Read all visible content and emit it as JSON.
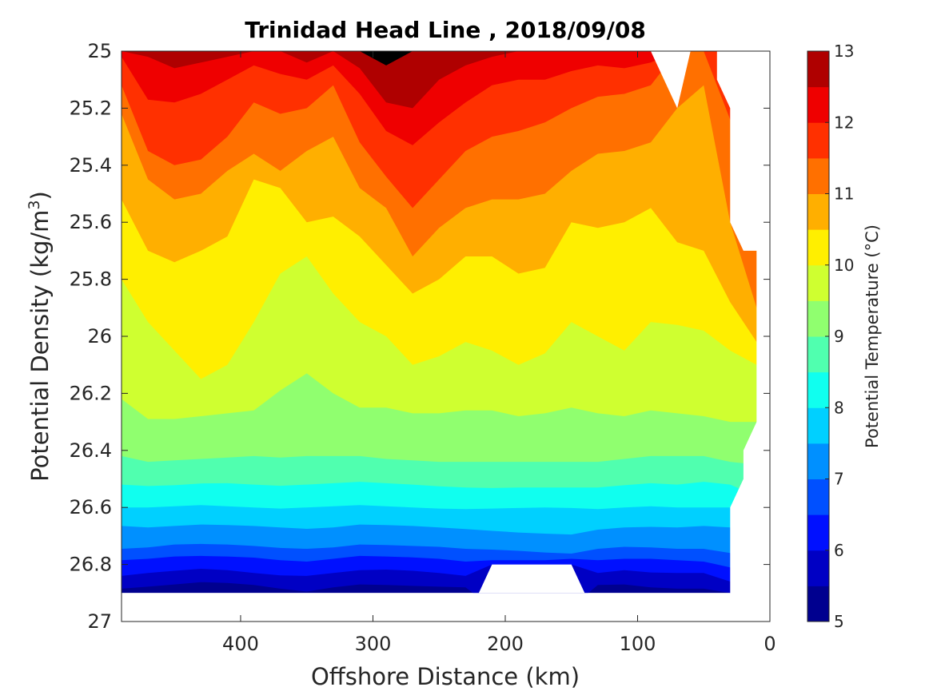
{
  "chart_data": {
    "type": "contour",
    "title": "Trinidad Head Line , 2018/09/08",
    "xlabel": "Offshore Distance (km)",
    "ylabel_main": "Potential Density (kg/m",
    "ylabel_sup": "3",
    "ylabel_close": ")",
    "colorbar_label": "Potential Temperature (°C)",
    "x_reversed": true,
    "xlim": [
      0,
      490
    ],
    "ylim": [
      25,
      27
    ],
    "y_reversed": true,
    "x_ticks": [
      400,
      300,
      200,
      100,
      0
    ],
    "x_tick_labels": [
      "400",
      "300",
      "200",
      "100",
      "0"
    ],
    "y_ticks": [
      25,
      25.2,
      25.4,
      25.6,
      25.8,
      26,
      26.2,
      26.4,
      26.6,
      26.8,
      27
    ],
    "y_tick_labels": [
      "25",
      "25.2",
      "25.4",
      "25.6",
      "25.8",
      "26",
      "26.2",
      "26.4",
      "26.6",
      "26.8",
      "27"
    ],
    "colorbar_ticks": [
      5,
      6,
      7,
      8,
      9,
      10,
      11,
      12,
      13
    ],
    "colorbar_tick_labels": [
      "5",
      "6",
      "7",
      "8",
      "9",
      "10",
      "11",
      "12",
      "13"
    ],
    "level_step": 0.5,
    "level_colors": [
      "#00008f",
      "#0000c4",
      "#0010ff",
      "#0050ff",
      "#0090ff",
      "#00d0ff",
      "#10ffef",
      "#50ffaf",
      "#90ff6f",
      "#cfff30",
      "#ffef00",
      "#ffaf00",
      "#ff7000",
      "#ff3000",
      "#ef0000",
      "#af0000"
    ],
    "section_x": [
      490,
      470,
      450,
      430,
      410,
      390,
      370,
      350,
      330,
      310,
      290,
      270,
      250,
      230,
      210,
      190,
      170,
      150,
      130,
      110,
      90,
      70,
      50,
      30,
      10
    ],
    "isopycnal_depth_of_level": {
      "5.5": [
        26.885,
        26.878,
        26.87,
        26.862,
        26.865,
        26.872,
        26.885,
        26.895,
        26.88,
        26.87,
        26.872,
        26.875,
        26.878,
        26.88,
        26.95,
        26.95,
        26.95,
        26.95,
        26.872,
        26.87,
        26.88,
        26.885,
        26.885,
        26.9,
        27
      ],
      "6": [
        26.84,
        26.83,
        26.822,
        26.815,
        26.82,
        26.83,
        26.838,
        26.84,
        26.83,
        26.82,
        26.818,
        26.822,
        26.83,
        26.84,
        26.8,
        26.8,
        26.8,
        26.8,
        26.83,
        26.82,
        26.828,
        26.83,
        26.83,
        26.86,
        27
      ],
      "6.5": [
        26.785,
        26.78,
        26.772,
        26.77,
        26.772,
        26.776,
        26.785,
        26.79,
        26.78,
        26.77,
        26.772,
        26.775,
        26.78,
        26.79,
        26.785,
        26.785,
        26.785,
        26.78,
        26.785,
        26.78,
        26.78,
        26.785,
        26.79,
        26.81,
        27
      ],
      "7": [
        26.745,
        26.74,
        26.73,
        26.728,
        26.73,
        26.735,
        26.742,
        26.745,
        26.74,
        26.73,
        26.732,
        26.735,
        26.738,
        26.745,
        26.748,
        26.752,
        26.758,
        26.762,
        26.745,
        26.738,
        26.74,
        26.745,
        26.745,
        26.76,
        27
      ],
      "7.5": [
        26.665,
        26.67,
        26.665,
        26.66,
        26.662,
        26.665,
        26.67,
        26.675,
        26.67,
        26.66,
        26.662,
        26.665,
        26.67,
        26.676,
        26.682,
        26.688,
        26.692,
        26.695,
        26.678,
        26.67,
        26.668,
        26.67,
        26.665,
        26.67,
        27
      ],
      "8": [
        26.6,
        26.6,
        26.596,
        26.592,
        26.596,
        26.6,
        26.604,
        26.6,
        26.596,
        26.592,
        26.596,
        26.6,
        26.604,
        26.606,
        26.604,
        26.602,
        26.6,
        26.602,
        26.606,
        26.6,
        26.596,
        26.6,
        26.6,
        26.6,
        26.62
      ],
      "8.5": [
        26.52,
        26.525,
        26.522,
        26.516,
        26.515,
        26.52,
        26.524,
        26.52,
        26.515,
        26.51,
        26.515,
        26.52,
        26.526,
        26.53,
        26.532,
        26.53,
        26.53,
        26.53,
        26.53,
        26.522,
        26.515,
        26.52,
        26.51,
        26.52,
        26.56
      ],
      "9": [
        26.42,
        26.44,
        26.435,
        26.43,
        26.425,
        26.42,
        26.425,
        26.42,
        26.42,
        26.42,
        26.43,
        26.435,
        26.44,
        26.44,
        26.44,
        26.44,
        26.44,
        26.44,
        26.44,
        26.43,
        26.42,
        26.42,
        26.42,
        26.44,
        26.45
      ],
      "9.5": [
        26.22,
        26.29,
        26.29,
        26.28,
        26.27,
        26.26,
        26.19,
        26.13,
        26.2,
        26.25,
        26.25,
        26.27,
        26.27,
        26.26,
        26.26,
        26.28,
        26.27,
        26.25,
        26.27,
        26.28,
        26.26,
        26.27,
        26.28,
        26.3,
        26.3
      ],
      "10": [
        25.8,
        25.95,
        26.05,
        26.15,
        26.1,
        25.95,
        25.78,
        25.72,
        25.85,
        25.95,
        26.0,
        26.1,
        26.07,
        26.02,
        26.05,
        26.1,
        26.06,
        25.95,
        26.0,
        26.05,
        25.95,
        25.96,
        25.98,
        26.05,
        26.1
      ],
      "10.5": [
        25.52,
        25.7,
        25.74,
        25.7,
        25.65,
        25.45,
        25.48,
        25.6,
        25.58,
        25.65,
        25.75,
        25.85,
        25.8,
        25.72,
        25.72,
        25.78,
        25.76,
        25.6,
        25.62,
        25.6,
        25.55,
        25.67,
        25.7,
        25.88,
        26.02
      ],
      "11": [
        25.22,
        25.45,
        25.52,
        25.5,
        25.42,
        25.36,
        25.42,
        25.35,
        25.3,
        25.48,
        25.55,
        25.72,
        25.62,
        25.55,
        25.52,
        25.52,
        25.5,
        25.42,
        25.36,
        25.35,
        25.32,
        25.2,
        25.12,
        25.6,
        25.9
      ],
      "11.5": [
        25.12,
        25.35,
        25.4,
        25.38,
        25.3,
        25.18,
        25.22,
        25.2,
        25.12,
        25.32,
        25.44,
        25.55,
        25.45,
        25.35,
        25.3,
        25.28,
        25.25,
        25.2,
        25.16,
        25.15,
        25.12,
        25.0,
        25.0,
        25.24,
        25.7
      ],
      "12": [
        25.02,
        25.17,
        25.18,
        25.15,
        25.1,
        25.05,
        25.08,
        25.1,
        25.05,
        25.15,
        25.28,
        25.33,
        25.25,
        25.18,
        25.12,
        25.1,
        25.1,
        25.07,
        25.05,
        25.06,
        25.04,
        25.0,
        25.0,
        25.0,
        25.0
      ],
      "12.5": [
        25.0,
        25.02,
        25.06,
        25.04,
        25.02,
        25.0,
        25.0,
        25.04,
        25.0,
        25.06,
        25.18,
        25.2,
        25.1,
        25.05,
        25.02,
        25.0,
        25.0,
        25.0,
        25.0,
        25.0,
        25.0,
        25.0,
        25.0,
        25.0,
        25.0
      ],
      "13": [
        25.0,
        25.0,
        25.0,
        25.0,
        25.0,
        25.0,
        25.0,
        25.0,
        25.0,
        25.0,
        25.05,
        25.0,
        25.0,
        25.0,
        25.0,
        25.0,
        25.0,
        25.0,
        25.0,
        25.0,
        25.0,
        25.0,
        25.0,
        25.0,
        25.0
      ]
    },
    "no_data_regions": [
      {
        "name": "seafloor gap",
        "points": [
          [
            220,
            26.9
          ],
          [
            210,
            26.8
          ],
          [
            150,
            26.8
          ],
          [
            140,
            26.9
          ]
        ]
      },
      {
        "name": "nearshore gap top",
        "points": [
          [
            90,
            25.0
          ],
          [
            70,
            25.2
          ],
          [
            60,
            25.0
          ]
        ]
      },
      {
        "name": "nearshore gap right",
        "points": [
          [
            40,
            25.0
          ],
          [
            40,
            25.1
          ],
          [
            30,
            25.2
          ],
          [
            30,
            25.6
          ],
          [
            20,
            25.7
          ],
          [
            10,
            25.7
          ],
          [
            10,
            26.3
          ],
          [
            20,
            26.4
          ],
          [
            20,
            26.5
          ],
          [
            30,
            26.6
          ],
          [
            30,
            26.9
          ],
          [
            0,
            27
          ],
          [
            0,
            25
          ]
        ]
      },
      {
        "name": "bottom strip",
        "points": [
          [
            490,
            26.9
          ],
          [
            0,
            26.9
          ],
          [
            0,
            27
          ],
          [
            490,
            27
          ]
        ]
      },
      {
        "name": "right strip",
        "points": [
          [
            10,
            25.0
          ],
          [
            0,
            25.0
          ],
          [
            0,
            27
          ],
          [
            10,
            27
          ]
        ]
      }
    ]
  }
}
